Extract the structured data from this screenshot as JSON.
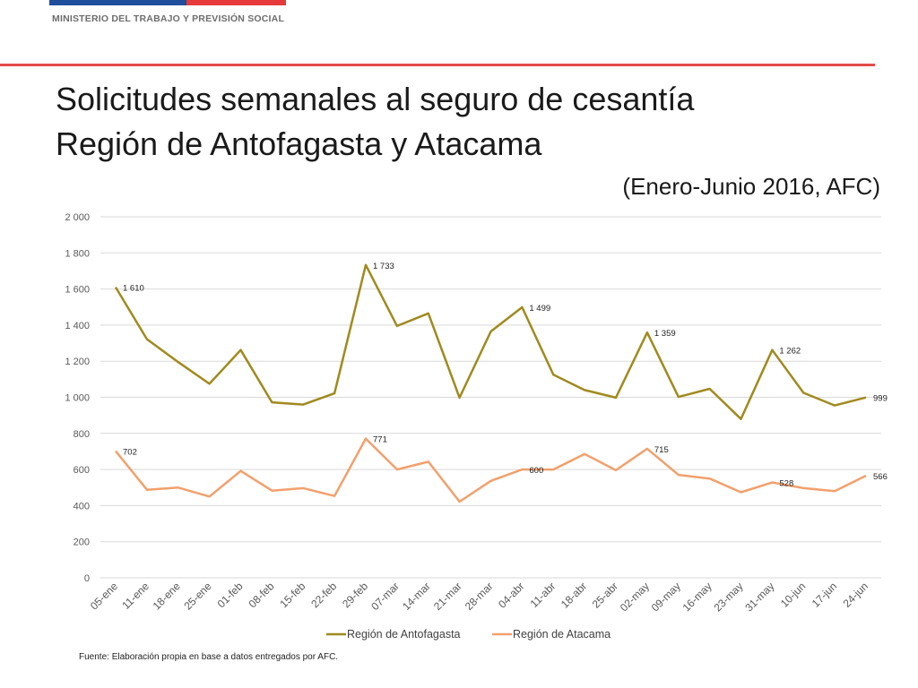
{
  "header": {
    "ministry": "MINISTERIO DEL TRABAJO Y PREVISIÓN SOCIAL",
    "title_line1": "Solicitudes semanales al seguro de cesantía",
    "title_line2": "Región de Antofagasta y Atacama",
    "subtitle": "(Enero-Junio 2016, AFC)",
    "colors": {
      "flag_blue": "#1f4e9c",
      "flag_red": "#e63a3a",
      "rule": "#e64b4b"
    }
  },
  "source": "Fuente: Elaboración propia en base a datos entregados por AFC.",
  "chart_data": {
    "type": "line",
    "categories": [
      "05-ene",
      "11-ene",
      "18-ene",
      "25-ene",
      "01-feb",
      "08-feb",
      "15-feb",
      "22-feb",
      "29-feb",
      "07-mar",
      "14-mar",
      "21-mar",
      "28-mar",
      "04-abr",
      "11-abr",
      "18-abr",
      "25-abr",
      "02-may",
      "09-may",
      "16-may",
      "23-may",
      "31-may",
      "10-jun",
      "17-jun",
      "24-jun"
    ],
    "ylim": [
      0,
      2000
    ],
    "yticks": [
      0,
      200,
      400,
      600,
      800,
      1000,
      1200,
      1400,
      1600,
      1800,
      2000
    ],
    "ytick_labels": [
      "0",
      "200",
      "400",
      "600",
      "800",
      "1 000",
      "1 200",
      "1 400",
      "1 600",
      "1 800",
      "2 000"
    ],
    "grid": true,
    "legend_position": "bottom",
    "series": [
      {
        "name": "Región de Antofagasta",
        "color": "#a08a1e",
        "values": [
          1610,
          1322,
          1195,
          1075,
          1262,
          972,
          960,
          1022,
          1733,
          1395,
          1465,
          998,
          1365,
          1499,
          1125,
          1040,
          998,
          1359,
          1002,
          1047,
          880,
          1262,
          1025,
          955,
          999
        ],
        "labels": {
          "0": "1 610",
          "8": "1 733",
          "13": "1 499",
          "17": "1 359",
          "21": "1 262",
          "24": "999"
        }
      },
      {
        "name": "Región de Atacama",
        "color": "#f2a06c",
        "values": [
          702,
          488,
          500,
          450,
          592,
          483,
          497,
          453,
          771,
          600,
          643,
          422,
          537,
          600,
          600,
          686,
          596,
          715,
          570,
          550,
          474,
          528,
          497,
          480,
          566
        ],
        "labels": {
          "0": "702",
          "8": "771",
          "13": "600",
          "17": "715",
          "21": "528",
          "24": "566"
        }
      }
    ]
  }
}
